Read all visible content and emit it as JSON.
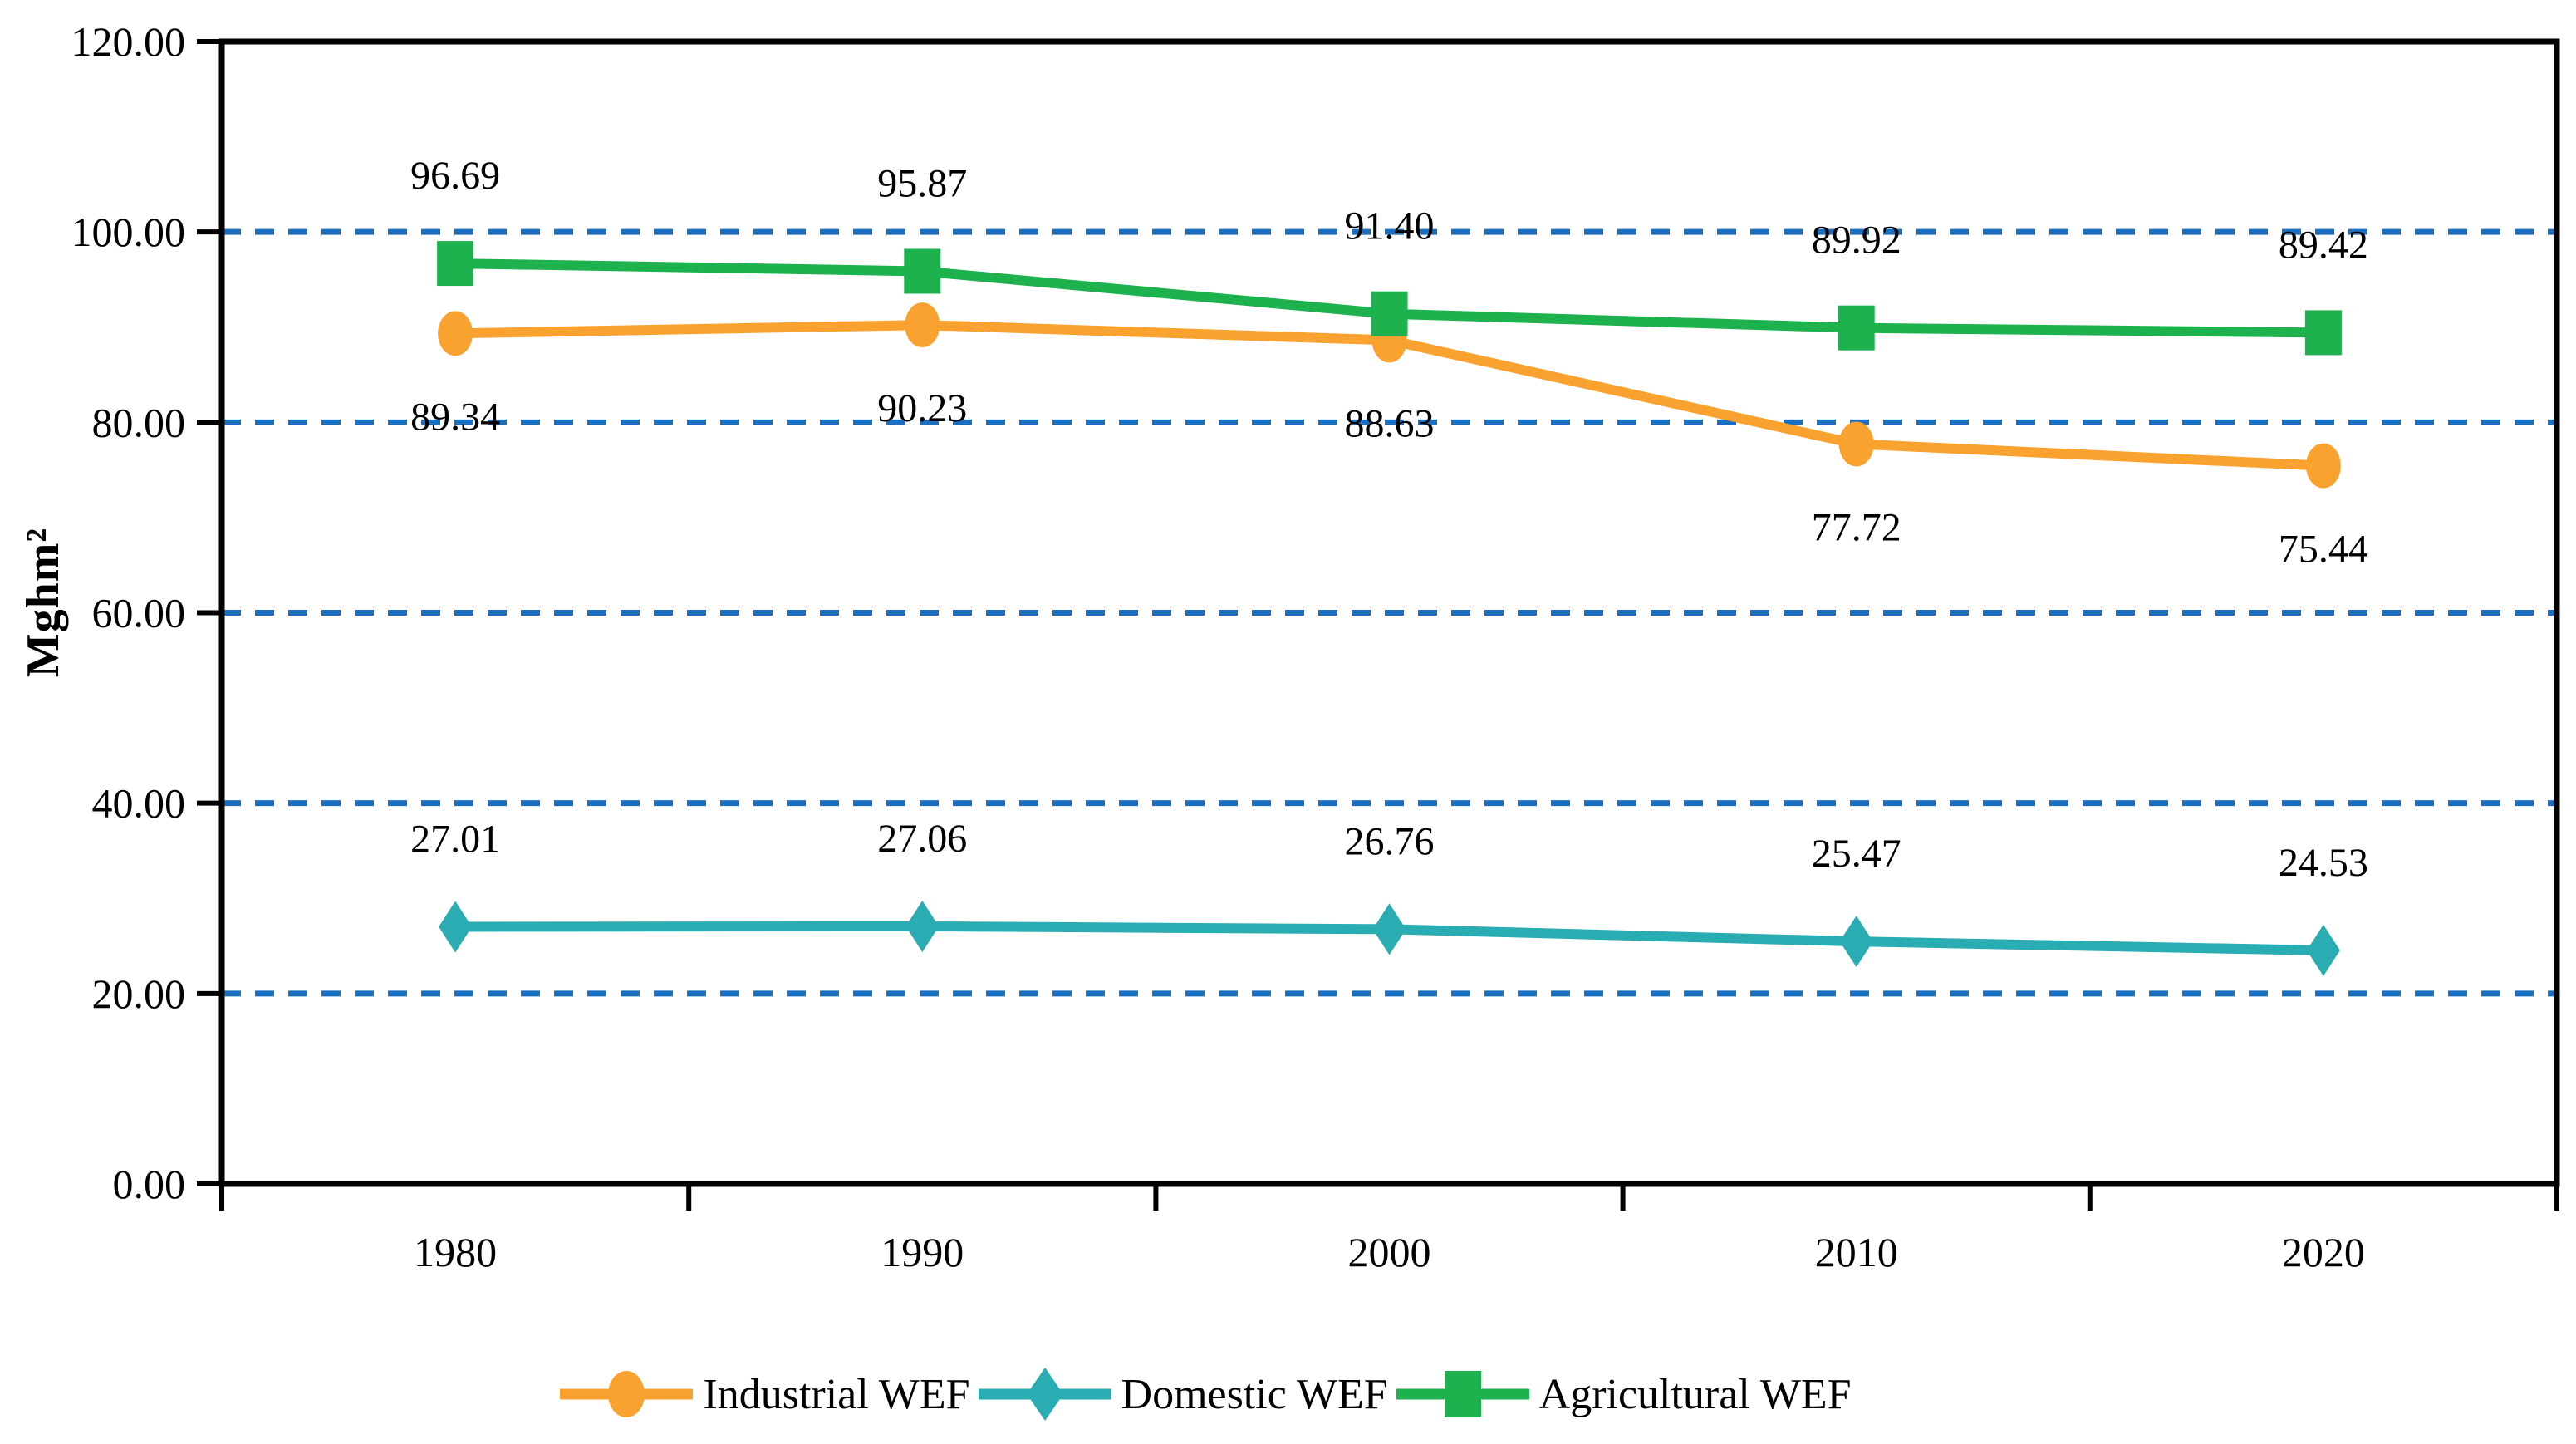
{
  "chart_data": {
    "type": "line",
    "title": "",
    "ylabel": "Mghm²",
    "xlabel": "",
    "categories": [
      "1980",
      "1990",
      "2000",
      "2010",
      "2020"
    ],
    "ylim": [
      0,
      120
    ],
    "ytick_step": 20,
    "ytick_labels": [
      "0.00",
      "20.00",
      "40.00",
      "60.00",
      "80.00",
      "100.00",
      "120.00"
    ],
    "grid": "horizontal dashed gridlines at 20.00, 40.00, 60.00, 80.00, 100.00",
    "legend_position": "bottom-center",
    "series": [
      {
        "name": "Industrial WEF",
        "marker": "circle",
        "color": "#FAA230",
        "label_side": "below",
        "values": [
          89.34,
          90.23,
          88.63,
          77.72,
          75.44
        ],
        "labels": [
          "89.34",
          "90.23",
          "88.63",
          "77.72",
          "75.44"
        ]
      },
      {
        "name": "Domestic WEF",
        "marker": "diamond",
        "color": "#29ACB2",
        "label_side": "above",
        "values": [
          27.01,
          27.06,
          26.76,
          25.47,
          24.53
        ],
        "labels": [
          "27.01",
          "27.06",
          "26.76",
          "25.47",
          "24.53"
        ]
      },
      {
        "name": "Agricultural WEF",
        "marker": "square",
        "color": "#1EB24F",
        "label_side": "above",
        "values": [
          96.69,
          95.87,
          91.4,
          89.92,
          89.42
        ],
        "labels": [
          "96.69",
          "95.87",
          "91.40",
          "89.92",
          "89.42"
        ]
      }
    ],
    "colors": {
      "gridline": "#1B6FC0",
      "axis": "#000000",
      "text": "#000000",
      "background": "#FFFFFF"
    }
  }
}
